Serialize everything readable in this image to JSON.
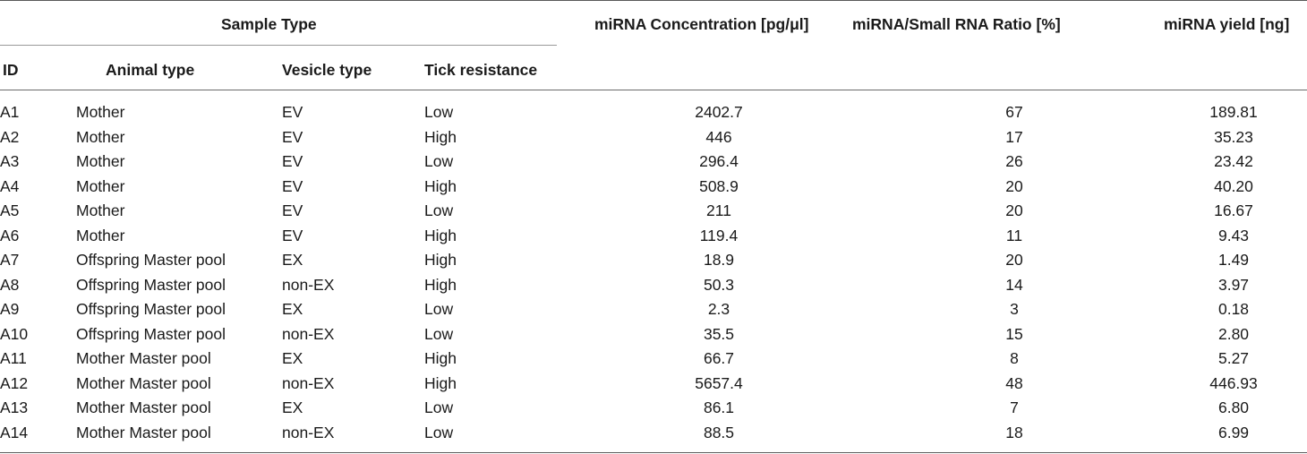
{
  "header": {
    "group_label": "Sample Type",
    "columns": {
      "id": "ID",
      "animal_type": "Animal type",
      "vesicle_type": "Vesicle type",
      "tick_resistance": "Tick resistance",
      "concentration": "miRNA Concentration [pg/μl]",
      "ratio": "miRNA/Small RNA Ratio [%]",
      "yield": "miRNA yield [ng]"
    }
  },
  "rows": [
    {
      "id": "A1",
      "animal": "Mother",
      "vesicle": "EV",
      "tick": "Low",
      "conc": "2402.7",
      "ratio": "67",
      "yield": "189.81"
    },
    {
      "id": "A2",
      "animal": "Mother",
      "vesicle": "EV",
      "tick": "High",
      "conc": "446",
      "ratio": "17",
      "yield": "35.23"
    },
    {
      "id": "A3",
      "animal": "Mother",
      "vesicle": "EV",
      "tick": "Low",
      "conc": "296.4",
      "ratio": "26",
      "yield": "23.42"
    },
    {
      "id": "A4",
      "animal": "Mother",
      "vesicle": "EV",
      "tick": "High",
      "conc": "508.9",
      "ratio": "20",
      "yield": "40.20"
    },
    {
      "id": "A5",
      "animal": "Mother",
      "vesicle": "EV",
      "tick": "Low",
      "conc": "211",
      "ratio": "20",
      "yield": "16.67"
    },
    {
      "id": "A6",
      "animal": "Mother",
      "vesicle": "EV",
      "tick": "High",
      "conc": "119.4",
      "ratio": "11",
      "yield": "9.43"
    },
    {
      "id": "A7",
      "animal": "Offspring Master pool",
      "vesicle": "EX",
      "tick": "High",
      "conc": "18.9",
      "ratio": "20",
      "yield": "1.49"
    },
    {
      "id": "A8",
      "animal": "Offspring Master pool",
      "vesicle": "non-EX",
      "tick": "High",
      "conc": "50.3",
      "ratio": "14",
      "yield": "3.97"
    },
    {
      "id": "A9",
      "animal": "Offspring Master pool",
      "vesicle": "EX",
      "tick": "Low",
      "conc": "2.3",
      "ratio": "3",
      "yield": "0.18"
    },
    {
      "id": "A10",
      "animal": "Offspring Master pool",
      "vesicle": "non-EX",
      "tick": "Low",
      "conc": "35.5",
      "ratio": "15",
      "yield": "2.80"
    },
    {
      "id": "A11",
      "animal": "Mother Master pool",
      "vesicle": "EX",
      "tick": "High",
      "conc": "66.7",
      "ratio": "8",
      "yield": "5.27"
    },
    {
      "id": "A12",
      "animal": "Mother Master pool",
      "vesicle": "non-EX",
      "tick": "High",
      "conc": "5657.4",
      "ratio": "48",
      "yield": "446.93"
    },
    {
      "id": "A13",
      "animal": "Mother Master pool",
      "vesicle": "EX",
      "tick": "Low",
      "conc": "86.1",
      "ratio": "7",
      "yield": "6.80"
    },
    {
      "id": "A14",
      "animal": "Mother Master pool",
      "vesicle": "non-EX",
      "tick": "Low",
      "conc": "88.5",
      "ratio": "18",
      "yield": "6.99"
    }
  ]
}
